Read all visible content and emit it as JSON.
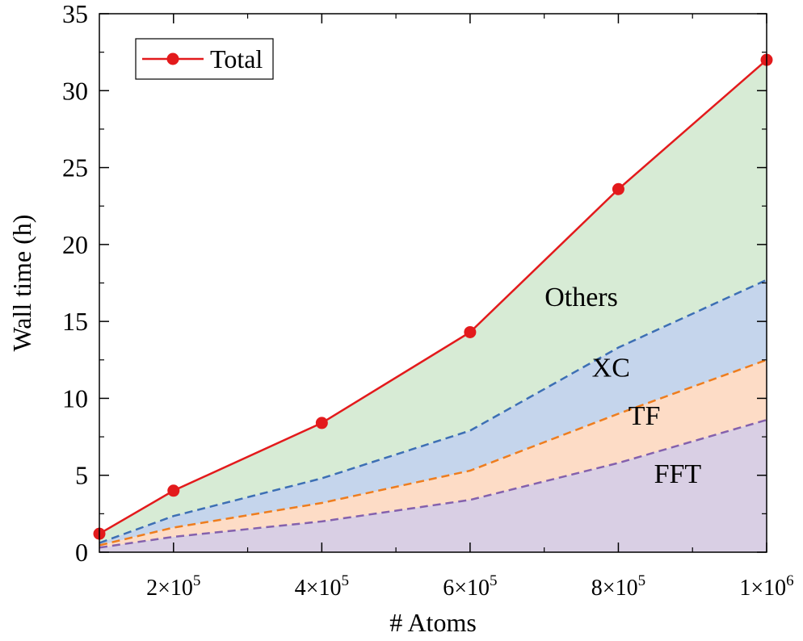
{
  "chart_data": {
    "type": "area",
    "xlabel": "# Atoms",
    "ylabel": "Wall time (h)",
    "xlim": [
      100000,
      1000000
    ],
    "ylim": [
      0,
      35
    ],
    "x_ticks": [
      {
        "value": 200000,
        "base": "2×10",
        "exp": "5"
      },
      {
        "value": 400000,
        "base": "4×10",
        "exp": "5"
      },
      {
        "value": 600000,
        "base": "6×10",
        "exp": "5"
      },
      {
        "value": 800000,
        "base": "8×10",
        "exp": "5"
      },
      {
        "value": 1000000,
        "base": "1×10",
        "exp": "6"
      }
    ],
    "y_ticks": [
      0,
      5,
      10,
      15,
      20,
      25,
      30,
      35
    ],
    "x": [
      100000,
      200000,
      400000,
      600000,
      800000,
      1000000
    ],
    "stacked_series": [
      {
        "name": "FFT",
        "values": [
          0.3,
          1.0,
          2.0,
          3.4,
          5.8,
          8.6
        ],
        "fill": "#d9cfe4",
        "line": "#8461ad"
      },
      {
        "name": "TF",
        "values": [
          0.45,
          1.6,
          3.2,
          5.3,
          9.0,
          12.5
        ],
        "fill": "#fddcc6",
        "line": "#ee7d1e"
      },
      {
        "name": "XC",
        "values": [
          0.6,
          2.35,
          4.8,
          7.9,
          13.3,
          17.7
        ],
        "fill": "#c5d5ec",
        "line": "#3d6fb4"
      },
      {
        "name": "Others",
        "values": [
          1.2,
          4.0,
          8.4,
          14.3,
          23.6,
          32.0
        ],
        "fill": "#d7ebd5",
        "line": null
      }
    ],
    "total_series": {
      "name": "Total",
      "values": [
        1.2,
        4.0,
        8.4,
        14.3,
        23.6,
        32.0
      ],
      "color": "#e31a1c"
    },
    "region_labels": [
      {
        "text": "Others",
        "x": 750000,
        "y": 16.0
      },
      {
        "text": "XC",
        "x": 790000,
        "y": 11.4
      },
      {
        "text": "TF",
        "x": 835000,
        "y": 8.3
      },
      {
        "text": "FFT",
        "x": 880000,
        "y": 4.5
      }
    ],
    "legend": {
      "position": "top-left",
      "entries": [
        "Total"
      ]
    },
    "grid": false
  }
}
